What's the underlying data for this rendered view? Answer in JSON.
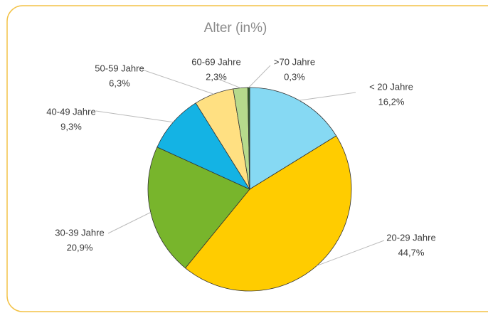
{
  "chart_data": {
    "type": "pie",
    "title": "Alter (in%)",
    "categories": [
      "< 20 Jahre",
      "20-29 Jahre",
      "30-39 Jahre",
      "40-49 Jahre",
      "50-59 Jahre",
      "60-69 Jahre",
      ">70 Jahre"
    ],
    "values": [
      16.2,
      44.7,
      20.9,
      9.3,
      6.3,
      2.3,
      0.3
    ],
    "value_labels": [
      "16,2%",
      "44,7%",
      "20,9%",
      "9,3%",
      "6,3%",
      "2,3%",
      "0,3%"
    ],
    "colors": [
      "#86d9f3",
      "#ffcc00",
      "#78b52c",
      "#14b3e4",
      "#ffe082",
      "#b6da8c",
      "#2f5f28"
    ]
  }
}
